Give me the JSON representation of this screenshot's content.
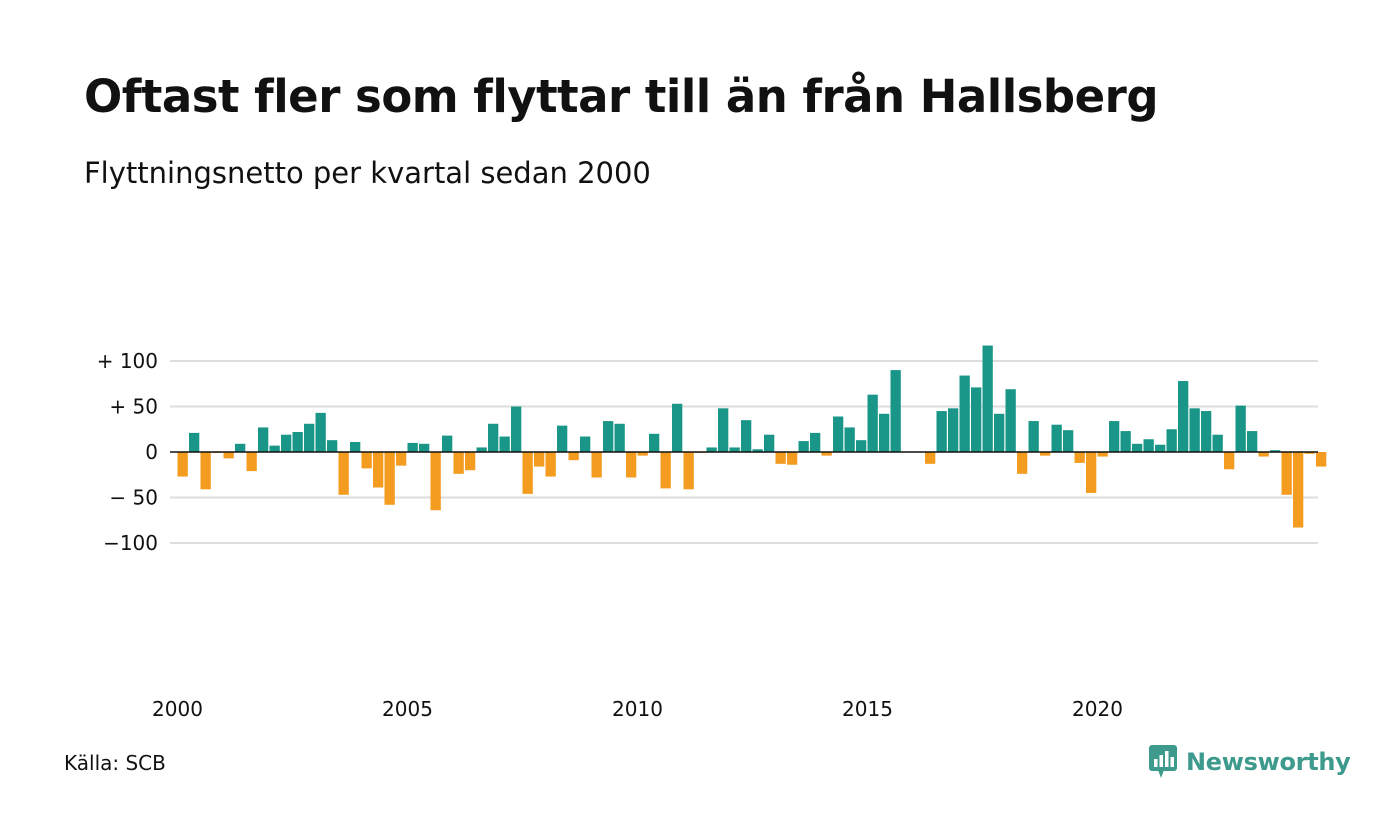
{
  "title": "Oftast fler som flyttar till än från Hallsberg",
  "subtitle": "Flyttningsnetto per kvartal sedan 2000",
  "source": "Källa: SCB",
  "brand": {
    "name": "Newsworthy",
    "icon": "newsworthy-logo-icon"
  },
  "colors": {
    "positive": "#1a9688",
    "negative": "#f39c1f",
    "grid": "#dddddd",
    "axis": "#111111",
    "brand": "#3d9a8c"
  },
  "chart_data": {
    "type": "bar",
    "x_unit": "quarter",
    "x_start": "2000 Q1",
    "xticks": [
      2000,
      2005,
      2010,
      2015,
      2020
    ],
    "yticks": [
      100,
      50,
      0,
      -50,
      -100
    ],
    "ytick_labels": [
      "+ 100",
      "+  50",
      "0",
      "− 50",
      "−100"
    ],
    "ylim": [
      -120,
      120
    ],
    "grid": true,
    "values": [
      -27,
      21,
      -41,
      -1,
      -7,
      9,
      -21,
      27,
      7,
      19,
      22,
      31,
      43,
      13,
      -47,
      11,
      -18,
      -39,
      -58,
      -15,
      10,
      9,
      -64,
      18,
      -24,
      -20,
      5,
      31,
      17,
      50,
      -46,
      -16,
      -27,
      29,
      -9,
      17,
      -28,
      34,
      31,
      -28,
      -4,
      20,
      -40,
      53,
      -41,
      -1,
      5,
      48,
      5,
      35,
      3,
      19,
      -13,
      -14,
      12,
      21,
      -4,
      39,
      27,
      13,
      63,
      42,
      90,
      0,
      0,
      -13,
      45,
      48,
      84,
      71,
      117,
      42,
      69,
      -24,
      34,
      -4,
      30,
      24,
      -12,
      -45,
      -5,
      34,
      23,
      9,
      14,
      8,
      25,
      78,
      48,
      45,
      19,
      -19,
      51,
      23,
      -5,
      2,
      -47,
      -83,
      -2,
      -16
    ]
  }
}
